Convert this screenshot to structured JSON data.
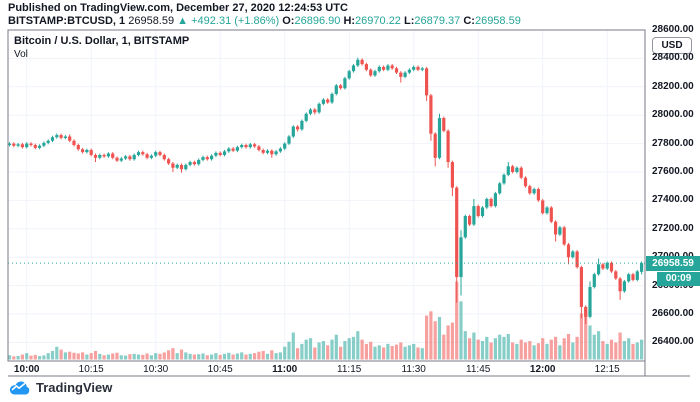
{
  "header": {
    "published_line": "Published on TradingView.com, December 27, 2020 12:24:53 UTC",
    "symbol": {
      "name": "BITSTAMP:BTCUSD,",
      "interval": "1",
      "last_price": "26958.59",
      "change": "▲ +492.31 (+1.86%)",
      "o_label": "O:",
      "o_value": "26896.90",
      "h_label": "H:",
      "h_value": "26970.22",
      "l_label": "L:",
      "l_value": "26879.37",
      "c_label": "C:",
      "c_value": "26958.59"
    }
  },
  "legend": {
    "title": "Bitcoin / U.S. Dollar, 1, BITSTAMP",
    "indicator": "Vol"
  },
  "price_scale": {
    "currency": "USD",
    "current_price": "26958.59",
    "countdown": "00:09"
  },
  "footer": {
    "brand": "TradingView",
    "logo_icon": "tradingview-cloud-icon"
  },
  "colors": {
    "up": "#26a69a",
    "down": "#ef5350",
    "volume_up": "rgba(38,166,154,0.55)",
    "volume_down": "rgba(239,83,80,0.55)",
    "grid": "#f0f3fa",
    "border": "#787b86",
    "accent_label": "#26a69a",
    "text": "#131722",
    "logo_blue": "#2196f3"
  },
  "chart_data": {
    "type": "candlestick-with-volume",
    "title": "Bitcoin / U.S. Dollar, 1, BITSTAMP",
    "exchange": "BITSTAMP",
    "interval_minutes": 1,
    "grid": true,
    "y_axis": {
      "side": "right",
      "range": [
        26380,
        28600
      ],
      "ticks": [
        28600,
        28400,
        28200,
        28000,
        27800,
        27600,
        27400,
        27200,
        27000,
        26800,
        26600,
        26400
      ]
    },
    "x_axis": {
      "side": "bottom",
      "ticks": [
        {
          "label": "10:00",
          "candle_index": 4,
          "bold": true
        },
        {
          "label": "10:15",
          "candle_index": 19,
          "bold": false
        },
        {
          "label": "10:30",
          "candle_index": 34,
          "bold": false
        },
        {
          "label": "10:45",
          "candle_index": 49,
          "bold": false
        },
        {
          "label": "11:00",
          "candle_index": 64,
          "bold": true
        },
        {
          "label": "11:15",
          "candle_index": 79,
          "bold": false
        },
        {
          "label": "11:30",
          "candle_index": 94,
          "bold": false
        },
        {
          "label": "11:45",
          "candle_index": 109,
          "bold": false
        },
        {
          "label": "12:00",
          "candle_index": 124,
          "bold": true
        },
        {
          "label": "12:15",
          "candle_index": 139,
          "bold": false
        }
      ]
    },
    "current_price": 26958.59,
    "current_price_line_style": "dotted",
    "volume_max_scale": 1100,
    "candle_format": [
      "time",
      "open",
      "high",
      "low",
      "close",
      "volume"
    ],
    "candles": [
      [
        "09:56",
        27790,
        27810,
        27780,
        27800,
        60
      ],
      [
        "09:57",
        27800,
        27810,
        27775,
        27785,
        45
      ],
      [
        "09:58",
        27785,
        27805,
        27775,
        27795,
        50
      ],
      [
        "09:59",
        27795,
        27805,
        27765,
        27775,
        70
      ],
      [
        "10:00",
        27775,
        27810,
        27765,
        27800,
        90
      ],
      [
        "10:01",
        27800,
        27810,
        27780,
        27790,
        55
      ],
      [
        "10:02",
        27790,
        27800,
        27760,
        27770,
        65
      ],
      [
        "10:03",
        27770,
        27795,
        27760,
        27785,
        48
      ],
      [
        "10:04",
        27785,
        27815,
        27775,
        27805,
        58
      ],
      [
        "10:05",
        27805,
        27830,
        27795,
        27820,
        90
      ],
      [
        "10:06",
        27820,
        27855,
        27810,
        27845,
        120
      ],
      [
        "10:07",
        27845,
        27872,
        27835,
        27860,
        180
      ],
      [
        "10:08",
        27860,
        27870,
        27830,
        27840,
        140
      ],
      [
        "10:09",
        27840,
        27860,
        27830,
        27850,
        100
      ],
      [
        "10:10",
        27850,
        27865,
        27810,
        27820,
        110
      ],
      [
        "10:11",
        27820,
        27830,
        27780,
        27790,
        95
      ],
      [
        "10:12",
        27790,
        27800,
        27750,
        27760,
        85
      ],
      [
        "10:13",
        27760,
        27770,
        27730,
        27740,
        100
      ],
      [
        "10:14",
        27740,
        27765,
        27730,
        27755,
        70
      ],
      [
        "10:15",
        27755,
        27765,
        27710,
        27720,
        90
      ],
      [
        "10:16",
        27720,
        27730,
        27670,
        27700,
        120
      ],
      [
        "10:17",
        27700,
        27730,
        27690,
        27720,
        80
      ],
      [
        "10:18",
        27720,
        27730,
        27700,
        27710,
        60
      ],
      [
        "10:19",
        27710,
        27740,
        27700,
        27730,
        70
      ],
      [
        "10:20",
        27730,
        27740,
        27690,
        27700,
        85
      ],
      [
        "10:21",
        27700,
        27710,
        27670,
        27680,
        95
      ],
      [
        "10:22",
        27680,
        27705,
        27670,
        27695,
        60
      ],
      [
        "10:23",
        27695,
        27720,
        27685,
        27710,
        55
      ],
      [
        "10:24",
        27710,
        27720,
        27680,
        27690,
        75
      ],
      [
        "10:25",
        27690,
        27730,
        27680,
        27720,
        80
      ],
      [
        "10:26",
        27720,
        27750,
        27710,
        27740,
        70
      ],
      [
        "10:27",
        27740,
        27750,
        27715,
        27725,
        65
      ],
      [
        "10:28",
        27725,
        27735,
        27690,
        27700,
        85
      ],
      [
        "10:29",
        27700,
        27725,
        27690,
        27715,
        60
      ],
      [
        "10:30",
        27715,
        27750,
        27705,
        27740,
        90
      ],
      [
        "10:31",
        27740,
        27750,
        27710,
        27720,
        80
      ],
      [
        "10:32",
        27720,
        27730,
        27680,
        27690,
        100
      ],
      [
        "10:33",
        27690,
        27700,
        27650,
        27660,
        130
      ],
      [
        "10:34",
        27660,
        27670,
        27600,
        27630,
        160
      ],
      [
        "10:35",
        27630,
        27660,
        27620,
        27650,
        90
      ],
      [
        "10:36",
        27650,
        27660,
        27595,
        27620,
        140
      ],
      [
        "10:37",
        27620,
        27660,
        27610,
        27650,
        100
      ],
      [
        "10:38",
        27650,
        27680,
        27640,
        27670,
        80
      ],
      [
        "10:39",
        27670,
        27680,
        27645,
        27655,
        70
      ],
      [
        "10:40",
        27655,
        27695,
        27645,
        27685,
        75
      ],
      [
        "10:41",
        27685,
        27715,
        27675,
        27705,
        85
      ],
      [
        "10:42",
        27705,
        27715,
        27680,
        27690,
        60
      ],
      [
        "10:43",
        27690,
        27725,
        27680,
        27715,
        70
      ],
      [
        "10:44",
        27715,
        27745,
        27705,
        27735,
        90
      ],
      [
        "10:45",
        27735,
        27745,
        27710,
        27720,
        65
      ],
      [
        "10:46",
        27720,
        27755,
        27710,
        27745,
        80
      ],
      [
        "10:47",
        27745,
        27775,
        27735,
        27765,
        95
      ],
      [
        "10:48",
        27765,
        27775,
        27740,
        27750,
        70
      ],
      [
        "10:49",
        27750,
        27785,
        27740,
        27775,
        85
      ],
      [
        "10:50",
        27775,
        27800,
        27765,
        27790,
        100
      ],
      [
        "10:51",
        27790,
        27800,
        27765,
        27775,
        70
      ],
      [
        "10:52",
        27775,
        27805,
        27765,
        27795,
        80
      ],
      [
        "10:53",
        27795,
        27805,
        27770,
        27780,
        90
      ],
      [
        "10:54",
        27780,
        27790,
        27745,
        27755,
        110
      ],
      [
        "10:55",
        27755,
        27765,
        27725,
        27735,
        120
      ],
      [
        "10:56",
        27735,
        27760,
        27725,
        27750,
        80
      ],
      [
        "10:57",
        27750,
        27760,
        27700,
        27725,
        130
      ],
      [
        "10:58",
        27725,
        27755,
        27715,
        27745,
        90
      ],
      [
        "10:59",
        27745,
        27775,
        27735,
        27765,
        100
      ],
      [
        "11:00",
        27765,
        27810,
        27755,
        27800,
        180
      ],
      [
        "11:01",
        27800,
        27860,
        27790,
        27850,
        250
      ],
      [
        "11:02",
        27850,
        27930,
        27840,
        27920,
        380
      ],
      [
        "11:03",
        27920,
        27930,
        27885,
        27900,
        160
      ],
      [
        "11:04",
        27900,
        27970,
        27890,
        27960,
        220
      ],
      [
        "11:05",
        27960,
        28020,
        27950,
        28010,
        280
      ],
      [
        "11:06",
        28010,
        28050,
        28000,
        28040,
        300
      ],
      [
        "11:07",
        28040,
        28050,
        28005,
        28020,
        170
      ],
      [
        "11:08",
        28020,
        28090,
        28010,
        28080,
        240
      ],
      [
        "11:09",
        28080,
        28120,
        28070,
        28110,
        260
      ],
      [
        "11:10",
        28110,
        28120,
        28080,
        28090,
        200
      ],
      [
        "11:11",
        28090,
        28160,
        28080,
        28150,
        280
      ],
      [
        "11:12",
        28150,
        28220,
        28140,
        28210,
        350
      ],
      [
        "11:13",
        28210,
        28220,
        28180,
        28190,
        180
      ],
      [
        "11:14",
        28190,
        28270,
        28180,
        28260,
        260
      ],
      [
        "11:15",
        28260,
        28320,
        28250,
        28310,
        300
      ],
      [
        "11:16",
        28310,
        28360,
        28300,
        28350,
        320
      ],
      [
        "11:17",
        28350,
        28405,
        28340,
        28390,
        400
      ],
      [
        "11:18",
        28390,
        28400,
        28350,
        28360,
        280
      ],
      [
        "11:19",
        28360,
        28370,
        28310,
        28320,
        220
      ],
      [
        "11:20",
        28320,
        28330,
        28270,
        28280,
        250
      ],
      [
        "11:21",
        28280,
        28320,
        28270,
        28310,
        180
      ],
      [
        "11:22",
        28310,
        28350,
        28300,
        28340,
        200
      ],
      [
        "11:23",
        28340,
        28350,
        28310,
        28320,
        170
      ],
      [
        "11:24",
        28320,
        28360,
        28310,
        28350,
        220
      ],
      [
        "11:25",
        28350,
        28360,
        28320,
        28330,
        190
      ],
      [
        "11:26",
        28330,
        28340,
        28290,
        28300,
        210
      ],
      [
        "11:27",
        28300,
        28310,
        28230,
        28270,
        240
      ],
      [
        "11:28",
        28270,
        28310,
        28260,
        28300,
        180
      ],
      [
        "11:29",
        28300,
        28330,
        28290,
        28320,
        200
      ],
      [
        "11:30",
        28320,
        28350,
        28310,
        28340,
        220
      ],
      [
        "11:31",
        28340,
        28350,
        28310,
        28320,
        170
      ],
      [
        "11:32",
        28320,
        28340,
        28310,
        28330,
        160
      ],
      [
        "11:33",
        28330,
        28340,
        28100,
        28140,
        620
      ],
      [
        "11:34",
        28140,
        28150,
        27820,
        27870,
        680
      ],
      [
        "11:35",
        27870,
        27880,
        27640,
        27700,
        540
      ],
      [
        "11:36",
        27700,
        28010,
        27690,
        27980,
        600
      ],
      [
        "11:37",
        27980,
        27990,
        27880,
        27890,
        350
      ],
      [
        "11:38",
        27890,
        27900,
        27630,
        27670,
        480
      ],
      [
        "11:39",
        27670,
        27680,
        27430,
        27490,
        520
      ],
      [
        "11:40",
        27490,
        27500,
        26680,
        26860,
        1100
      ],
      [
        "11:41",
        26860,
        27190,
        26730,
        27140,
        820
      ],
      [
        "11:42",
        27140,
        27300,
        27130,
        27290,
        400
      ],
      [
        "11:43",
        27290,
        27300,
        27220,
        27230,
        300
      ],
      [
        "11:44",
        27230,
        27410,
        27220,
        27360,
        380
      ],
      [
        "11:45",
        27360,
        27370,
        27280,
        27290,
        280
      ],
      [
        "11:46",
        27290,
        27360,
        27280,
        27350,
        260
      ],
      [
        "11:47",
        27350,
        27420,
        27340,
        27410,
        320
      ],
      [
        "11:48",
        27410,
        27420,
        27350,
        27360,
        240
      ],
      [
        "11:49",
        27360,
        27460,
        27350,
        27450,
        300
      ],
      [
        "11:50",
        27450,
        27530,
        27440,
        27520,
        350
      ],
      [
        "11:51",
        27520,
        27590,
        27510,
        27580,
        320
      ],
      [
        "11:52",
        27580,
        27670,
        27570,
        27640,
        360
      ],
      [
        "11:53",
        27640,
        27650,
        27590,
        27600,
        240
      ],
      [
        "11:54",
        27600,
        27640,
        27590,
        27630,
        220
      ],
      [
        "11:55",
        27630,
        27640,
        27550,
        27560,
        280
      ],
      [
        "11:56",
        27560,
        27570,
        27490,
        27500,
        240
      ],
      [
        "11:57",
        27500,
        27510,
        27440,
        27450,
        260
      ],
      [
        "11:58",
        27450,
        27490,
        27440,
        27480,
        200
      ],
      [
        "11:59",
        27480,
        27490,
        27390,
        27400,
        230
      ],
      [
        "12:00",
        27400,
        27410,
        27300,
        27310,
        300
      ],
      [
        "12:01",
        27310,
        27360,
        27300,
        27350,
        220
      ],
      [
        "12:02",
        27350,
        27360,
        27240,
        27250,
        280
      ],
      [
        "12:03",
        27250,
        27260,
        27110,
        27160,
        320
      ],
      [
        "12:04",
        27160,
        27220,
        27150,
        27210,
        200
      ],
      [
        "12:05",
        27210,
        27220,
        27080,
        27090,
        300
      ],
      [
        "12:06",
        27090,
        27100,
        26950,
        27000,
        360
      ],
      [
        "12:07",
        27000,
        27050,
        26990,
        27040,
        240
      ],
      [
        "12:08",
        27040,
        27050,
        26920,
        26930,
        320
      ],
      [
        "12:09",
        26930,
        26940,
        26570,
        26650,
        650
      ],
      [
        "12:10",
        26650,
        26660,
        26530,
        26580,
        700
      ],
      [
        "12:11",
        26580,
        26830,
        26570,
        26790,
        480
      ],
      [
        "12:12",
        26790,
        26890,
        26780,
        26880,
        350
      ],
      [
        "12:13",
        26880,
        26990,
        26870,
        26950,
        400
      ],
      [
        "12:14",
        26950,
        26960,
        26910,
        26920,
        260
      ],
      [
        "12:15",
        26920,
        26970,
        26910,
        26960,
        220
      ],
      [
        "12:16",
        26960,
        26970,
        26890,
        26900,
        280
      ],
      [
        "12:17",
        26900,
        26910,
        26840,
        26850,
        240
      ],
      [
        "12:18",
        26850,
        26860,
        26700,
        26760,
        380
      ],
      [
        "12:19",
        26760,
        26840,
        26750,
        26830,
        260
      ],
      [
        "12:20",
        26830,
        26890,
        26820,
        26880,
        300
      ],
      [
        "12:21",
        26880,
        26890,
        26830,
        26840,
        220
      ],
      [
        "12:22",
        26840,
        26910,
        26830,
        26900,
        240
      ],
      [
        "12:23",
        26896.9,
        26970.22,
        26879.37,
        26958.59,
        280
      ]
    ]
  }
}
